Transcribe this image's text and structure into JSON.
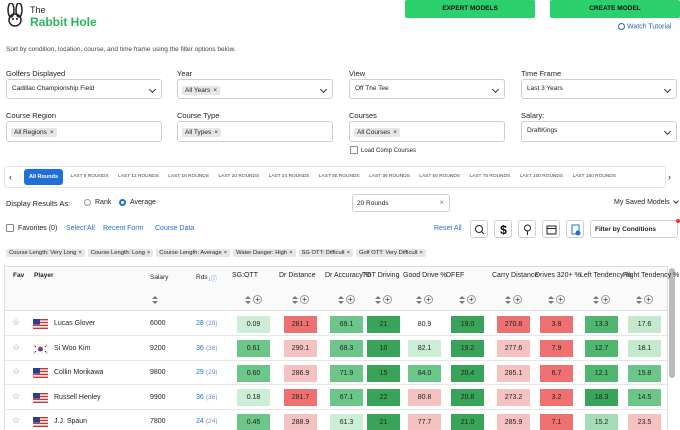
{
  "header": {
    "logo_small": "The",
    "logo_big": "Rabbit Hole",
    "buttons": [
      "EXPERT MODELS",
      "CREATE MODEL"
    ],
    "tutorial": "Watch Tutorial"
  },
  "description": "Sort by condition, location, course, and time frame using the filter options below.",
  "filters": [
    {
      "label": "Golfers Displayed",
      "value": "Cadillac Championship Field"
    },
    {
      "label": "Year",
      "value": "All Years"
    },
    {
      "label": "View",
      "value": "Off The Tee"
    },
    {
      "label": "Time Frame",
      "value": "Last 3 Years"
    },
    {
      "label": "Course Region",
      "value": "All Regions"
    },
    {
      "label": "Course Type",
      "value": "All Types"
    },
    {
      "label": "Courses",
      "value": "All Courses"
    },
    {
      "label": "Salary:",
      "value": "DraftKings"
    }
  ],
  "load_comp": "Load Comp Courses",
  "round_tabs": [
    "All Rounds",
    "LAST 8 ROUNDS",
    "LAST 12 ROUNDS",
    "LAST 16 ROUNDS",
    "LAST 20 ROUNDS",
    "LAST 24 ROUNDS",
    "LAST 30 ROUNDS",
    "LAST 36 ROUNDS",
    "LAST 50 ROUNDS",
    "LAST 75 ROUNDS",
    "LAST 100 ROUNDS",
    "LAST 150 ROUNDS"
  ],
  "display": {
    "label": "Display Results As:",
    "options": [
      "Rank",
      "Average"
    ],
    "rounds": "20 Rounds",
    "saved": "My Saved Models"
  },
  "toolbar": {
    "favorites": "Favorites (0)",
    "links": [
      "Select All",
      "Recent Form",
      "Course Data"
    ],
    "reset": "Reset All",
    "filter": "Filter by Conditions"
  },
  "tags": [
    "Course Length: Very Long",
    "Course Length: Long",
    "Course Length: Average",
    "Water Danger: High",
    "SG OTT: Difficult",
    "Golf OTT: Very Difficult"
  ],
  "table": {
    "headers": [
      "Fav",
      "Player",
      "Salary",
      "Rds",
      "SG:OTT",
      "Dr Distance",
      "Dr Accuracy %",
      "TOT Driving",
      "Good Drive %",
      "DFEF",
      "Carry Distance",
      "Drives 320+ %",
      "Left Tendency %",
      "Right Tendency %"
    ],
    "rows": [
      {
        "player": "Lucas Glover",
        "flag": "us",
        "salary": 6000,
        "rds": "28",
        "rds_paren": "(28)",
        "stats": [
          "0.09",
          "281.1",
          "69.1",
          "21",
          "80.9",
          "19.0",
          "270.8",
          "3.8",
          "13.3",
          "17.6"
        ],
        "colors": [
          "#cdeed6",
          "#ef7070",
          "#6cc68a",
          "#3aa35a",
          "#ffffff",
          "#3aa35a",
          "#ef7070",
          "#ef7070",
          "#4fb56f",
          "#c4e9cd"
        ]
      },
      {
        "player": "Si Woo Kim",
        "flag": "kr",
        "salary": 9200,
        "rds": "36",
        "rds_paren": "(36)",
        "stats": [
          "0.61",
          "290.1",
          "68.3",
          "10",
          "82.1",
          "19.2",
          "277.6",
          "7.9",
          "12.7",
          "18.1"
        ],
        "colors": [
          "#6cc68a",
          "#f5c2c2",
          "#6cc68a",
          "#3aa35a",
          "#cdeed6",
          "#3aa35a",
          "#f5c2c2",
          "#ef7070",
          "#4fb56f",
          "#c4e9cd"
        ]
      },
      {
        "player": "Collin Morikawa",
        "flag": "us",
        "salary": 9800,
        "rds": "29",
        "rds_paren": "(29)",
        "stats": [
          "0.60",
          "286.9",
          "71.9",
          "15",
          "84.0",
          "20.4",
          "285.1",
          "6.7",
          "12.1",
          "15.8"
        ],
        "colors": [
          "#6cc68a",
          "#f5c2c2",
          "#6cc68a",
          "#3aa35a",
          "#6cc68a",
          "#3aa35a",
          "#f5c2c2",
          "#ef7070",
          "#4fb56f",
          "#6cc68a"
        ]
      },
      {
        "player": "Russell Henley",
        "flag": "us",
        "salary": 9900,
        "rds": "36",
        "rds_paren": "(36)",
        "stats": [
          "0.18",
          "281.7",
          "67.1",
          "22",
          "80.8",
          "20.8",
          "273.2",
          "3.2",
          "18.3",
          "14.5"
        ],
        "colors": [
          "#cdeed6",
          "#ef7070",
          "#6cc68a",
          "#3aa35a",
          "#f5c2c2",
          "#3aa35a",
          "#f5c2c2",
          "#ef7070",
          "#3aa35a",
          "#6cc68a"
        ]
      },
      {
        "player": "J.J. Spaun",
        "flag": "us",
        "salary": 7800,
        "rds": "24",
        "rds_paren": "(24)",
        "stats": [
          "0.45",
          "288.9",
          "61.3",
          "21",
          "77.7",
          "21.0",
          "285.9",
          "7.1",
          "15.2",
          "23.5"
        ],
        "colors": [
          "#6cc68a",
          "#f5c2c2",
          "#cdeed6",
          "#3aa35a",
          "#f5c2c2",
          "#3aa35a",
          "#f5c2c2",
          "#ef7070",
          "#a6dcb5",
          "#f5c2c2"
        ]
      }
    ]
  }
}
